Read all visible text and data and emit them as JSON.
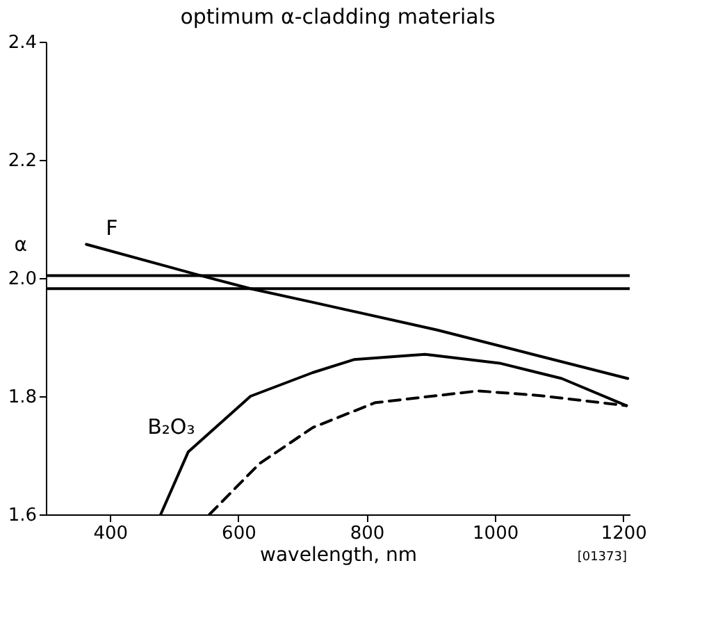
{
  "chart_data": {
    "type": "line",
    "title": "optimum α-cladding materials",
    "xlabel": "wavelength, nm",
    "ylabel": "α",
    "xlim": [
      300,
      1210
    ],
    "xticks": [
      400,
      600,
      800,
      1000,
      1200
    ],
    "ylim": [
      1.6,
      2.4
    ],
    "yticks": [
      1.6,
      1.8,
      {
        "value": 2.0,
        "label": "2.0"
      },
      2.2,
      2.4
    ],
    "grid": false,
    "marker": "none",
    "series": [
      {
        "name": "F",
        "color": "#000000",
        "line_style": "solid",
        "x": [
          363,
          542,
          619,
          716,
          910,
          1207
        ],
        "values": [
          2.057,
          2.004,
          1.982,
          1.959,
          1.912,
          1.83
        ]
      },
      {
        "name": "B₂O₃",
        "color": "#000000",
        "line_style": "solid",
        "x": [
          479,
          522,
          619,
          716,
          780,
          891,
          1007,
          1104,
          1205
        ],
        "values": [
          1.6,
          1.706,
          1.8,
          1.84,
          1.862,
          1.871,
          1.856,
          1.83,
          1.784
        ]
      },
      {
        "color": "#000000",
        "line_style": "dashed",
        "x": [
          555,
          633,
          716,
          813,
          974,
          1071,
          1205
        ],
        "values": [
          1.6,
          1.686,
          1.747,
          1.789,
          1.809,
          1.801,
          1.784
        ]
      }
    ],
    "ref_lines": [
      {
        "axis": "y",
        "value": 2.004,
        "color": "#000000",
        "line_style": "solid"
      },
      {
        "axis": "y",
        "value": 1.982,
        "color": "#000000",
        "line_style": "solid"
      }
    ],
    "annotations": [
      "[01373]"
    ]
  }
}
